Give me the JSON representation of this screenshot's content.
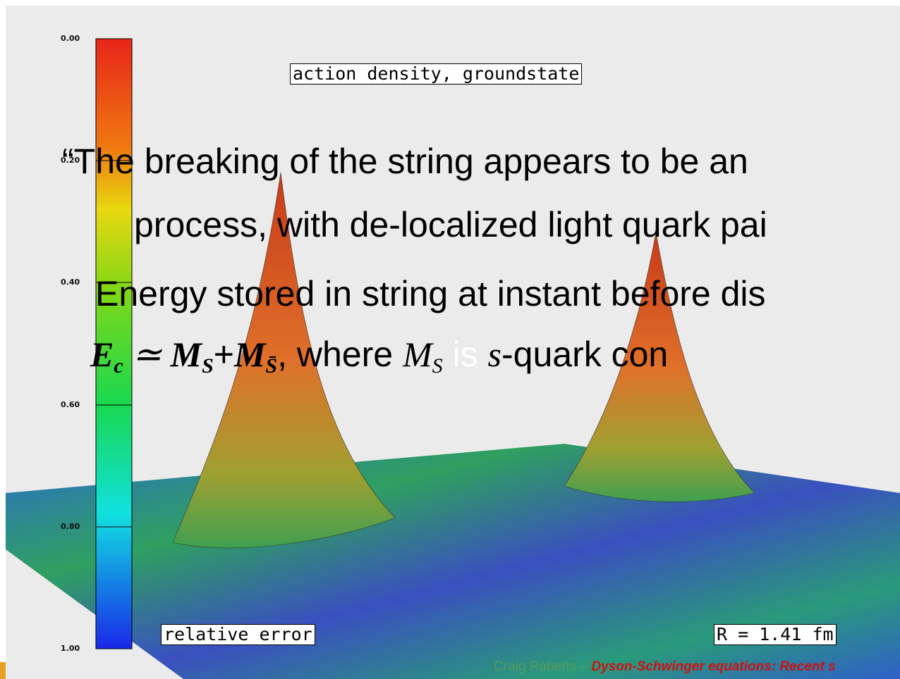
{
  "colorbar": {
    "labels": [
      "0.00",
      "0.20",
      "0.40",
      "0.60",
      "0.80",
      "1.00"
    ]
  },
  "plot": {
    "title": "action density, groundstate",
    "left_label": "relative error",
    "right_label": "R = 1.41 fm"
  },
  "slide": {
    "quote_line_1": "“The breaking of the string appears to be an",
    "quote_line_2": "process, with de-localized light quark pai",
    "energy_line": "Energy stored in string at instant before dis",
    "formula": {
      "e": "E",
      "e_sub": "c",
      "approx": " ≃ ",
      "m1": "M",
      "m1_sub": "S",
      "plus": "+",
      "m2": "M",
      "m2_sub": "S̄",
      "where": ", where ",
      "m3": "M",
      "m3_sub": "S",
      "is": " is ",
      "s": "s",
      "tail": "-quark con"
    }
  },
  "footer": {
    "author": "Craig Roberts – ",
    "talk": "Dyson-Schwinger equations: Recent s"
  }
}
